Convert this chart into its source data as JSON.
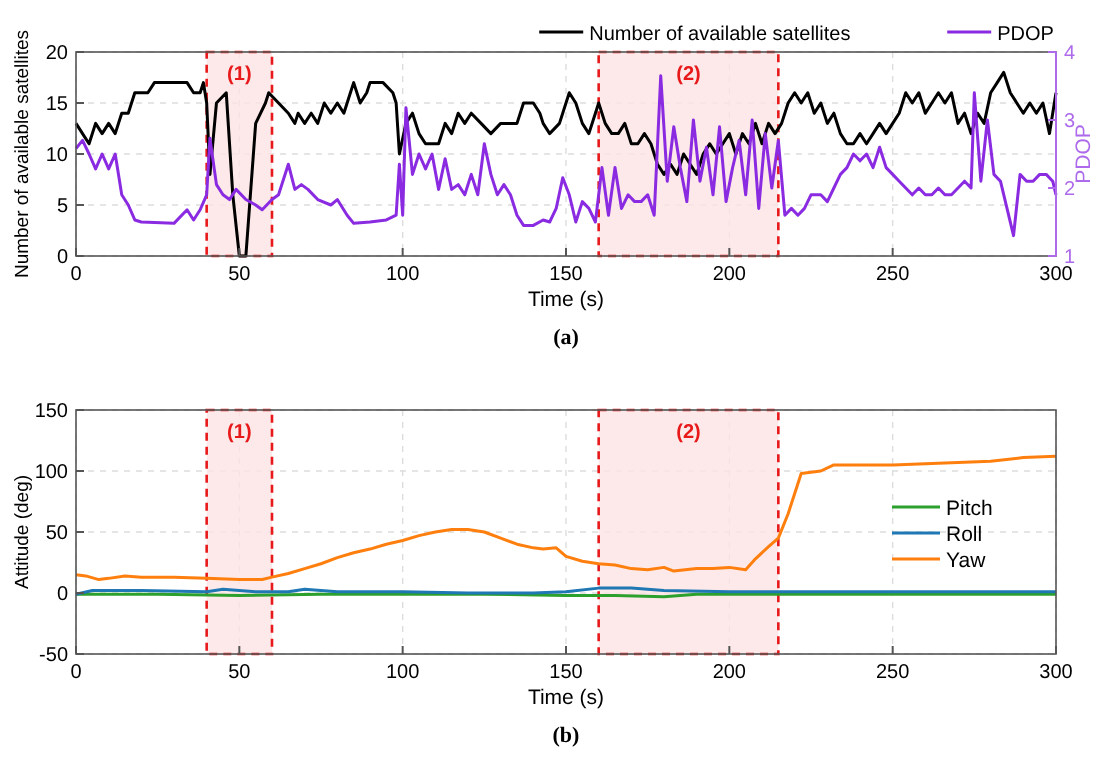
{
  "chart_data": [
    {
      "type": "line",
      "xlabel": "Time (s)",
      "ylabel": "Number of available satellites",
      "y2label": "PDOP",
      "xlim": [
        0,
        300
      ],
      "xticks": [
        0,
        50,
        100,
        150,
        200,
        250,
        300
      ],
      "ylim": [
        0,
        20
      ],
      "yticks": [
        0,
        5,
        10,
        15,
        20
      ],
      "y2lim": [
        1,
        4
      ],
      "y2ticks": [
        1,
        2,
        3,
        4
      ],
      "grid": true,
      "legend": "top right",
      "annotations": [
        "(a)"
      ],
      "bands": [
        {
          "axis": "x",
          "from": 40,
          "to": 60,
          "label": "(1)",
          "color": "#fde4e4"
        },
        {
          "axis": "x",
          "from": 160,
          "to": 215,
          "label": "(2)",
          "color": "#fde4e4"
        }
      ],
      "series": [
        {
          "name": "Number of available satellites",
          "color": "#000000",
          "x": [
            0,
            2,
            4,
            6,
            8,
            10,
            12,
            14,
            16,
            18,
            22,
            24,
            34,
            36,
            38,
            39,
            40,
            41,
            43,
            46,
            48,
            50,
            52,
            55,
            58,
            59,
            62,
            65,
            67,
            68,
            70,
            72,
            74,
            76,
            78,
            80,
            82,
            84,
            85,
            87,
            89,
            90,
            94,
            97,
            98,
            99,
            101,
            103,
            105,
            107,
            111,
            113,
            115,
            117,
            119,
            121,
            124,
            127,
            130,
            135,
            137,
            140,
            142,
            143,
            145,
            148,
            151,
            153,
            155,
            157,
            159,
            160,
            162,
            164,
            166,
            168,
            170,
            172,
            174,
            176,
            178,
            180,
            182,
            184,
            186,
            188,
            190,
            192,
            194,
            196,
            198,
            200,
            202,
            204,
            206,
            208,
            210,
            212,
            214,
            216,
            218,
            220,
            222,
            224,
            226,
            228,
            230,
            232,
            234,
            236,
            238,
            240,
            242,
            244,
            246,
            248,
            250,
            252,
            254,
            256,
            258,
            260,
            262,
            264,
            266,
            268,
            270,
            272,
            274,
            276,
            278,
            280,
            282,
            284,
            286,
            288,
            290,
            292,
            294,
            296,
            298,
            300
          ],
          "values": [
            13,
            12,
            11,
            13,
            12,
            13,
            12,
            14,
            14,
            16,
            16,
            17,
            17,
            16,
            16,
            17,
            15,
            8,
            15,
            16,
            6,
            0,
            0,
            13,
            15,
            16,
            15,
            14,
            13,
            14,
            13,
            14,
            13,
            15,
            14,
            15,
            14,
            16,
            17,
            15,
            16,
            17,
            17,
            16,
            15,
            10,
            13,
            14,
            12,
            11,
            11,
            13,
            12,
            14,
            13,
            14,
            13,
            12,
            13,
            13,
            15,
            15,
            14,
            13,
            12,
            13,
            16,
            15,
            13,
            12,
            14,
            15,
            13,
            12,
            12,
            13,
            11,
            11,
            12,
            11,
            9,
            8,
            9,
            8,
            10,
            9,
            8,
            10,
            11,
            10,
            11,
            12,
            10,
            12,
            11,
            13,
            11,
            13,
            12,
            13,
            15,
            16,
            15,
            16,
            14,
            15,
            13,
            14,
            12,
            11,
            11,
            12,
            11,
            12,
            13,
            12,
            13,
            14,
            16,
            15,
            16,
            14,
            15,
            16,
            15,
            16,
            13,
            14,
            12,
            14,
            13,
            16,
            17,
            18,
            16,
            15,
            14,
            15,
            14,
            15,
            12,
            16
          ]
        },
        {
          "name": "PDOP",
          "color": "#8a2be2",
          "axis": "y2",
          "x": [
            0,
            2,
            4,
            6,
            8,
            10,
            12,
            14,
            16,
            18,
            20,
            30,
            34,
            36,
            38,
            40,
            41,
            43,
            45,
            47,
            49,
            52,
            55,
            57,
            60,
            62,
            65,
            67,
            69,
            71,
            74,
            78,
            80,
            83,
            85,
            90,
            95,
            98,
            99,
            100,
            101,
            103,
            105,
            107,
            109,
            111,
            113,
            115,
            117,
            119,
            121,
            123,
            125,
            127,
            129,
            131,
            133,
            135,
            137,
            140,
            143,
            145,
            147,
            149,
            151,
            153,
            155,
            157,
            159,
            161,
            163,
            165,
            167,
            169,
            171,
            173,
            175,
            177,
            179,
            181,
            183,
            185,
            187,
            189,
            191,
            193,
            195,
            197,
            199,
            201,
            203,
            205,
            207,
            209,
            211,
            213,
            215,
            217,
            219,
            221,
            223,
            225,
            228,
            230,
            232,
            234,
            236,
            238,
            240,
            242,
            244,
            246,
            248,
            250,
            252,
            254,
            256,
            258,
            260,
            262,
            264,
            266,
            268,
            270,
            272,
            274,
            275,
            277,
            279,
            281,
            283,
            285,
            287,
            289,
            291,
            293,
            295,
            297,
            299,
            300
          ],
          "values": [
            2.58,
            2.7,
            2.5,
            2.28,
            2.5,
            2.28,
            2.5,
            1.9,
            1.75,
            1.53,
            1.5,
            1.48,
            1.68,
            1.53,
            1.68,
            1.9,
            2.73,
            2.05,
            1.9,
            1.83,
            1.98,
            1.83,
            1.75,
            1.68,
            1.83,
            1.9,
            2.35,
            1.98,
            2.05,
            1.98,
            1.83,
            1.75,
            1.83,
            1.6,
            1.48,
            1.5,
            1.53,
            1.6,
            2.35,
            1.6,
            3.18,
            2.2,
            2.5,
            2.28,
            2.5,
            1.98,
            2.43,
            1.98,
            2.05,
            1.9,
            2.2,
            1.9,
            2.65,
            2.2,
            1.9,
            2.05,
            1.9,
            1.6,
            1.45,
            1.45,
            1.53,
            1.5,
            1.7,
            2.15,
            1.9,
            1.5,
            1.8,
            1.7,
            1.5,
            2.3,
            1.6,
            2.3,
            1.7,
            1.9,
            1.8,
            1.8,
            1.9,
            1.6,
            3.65,
            2.1,
            2.9,
            2.3,
            1.8,
            3.0,
            2.1,
            2.6,
            1.9,
            2.9,
            1.8,
            2.3,
            2.7,
            1.9,
            3.0,
            1.7,
            2.8,
            2.0,
            2.7,
            1.6,
            1.7,
            1.6,
            1.7,
            1.9,
            1.9,
            1.8,
            2.0,
            2.2,
            2.3,
            2.5,
            2.4,
            2.5,
            2.3,
            2.6,
            2.3,
            2.2,
            2.1,
            2.0,
            1.9,
            2.0,
            1.9,
            1.9,
            2.0,
            1.9,
            1.9,
            2.0,
            2.1,
            2.0,
            3.4,
            2.1,
            3.0,
            2.2,
            2.1,
            1.7,
            1.3,
            2.2,
            2.1,
            2.1,
            2.2,
            2.2,
            2.1,
            1.9
          ]
        }
      ]
    },
    {
      "type": "line",
      "xlabel": "Time (s)",
      "ylabel": "Attitude (deg)",
      "xlim": [
        0,
        300
      ],
      "xticks": [
        0,
        50,
        100,
        150,
        200,
        250,
        300
      ],
      "ylim": [
        -50,
        150
      ],
      "yticks": [
        -50,
        0,
        50,
        100,
        150
      ],
      "grid": true,
      "legend": "right",
      "annotations": [
        "(b)"
      ],
      "bands": [
        {
          "axis": "x",
          "from": 40,
          "to": 60,
          "label": "(1)",
          "color": "#fde4e4"
        },
        {
          "axis": "x",
          "from": 160,
          "to": 215,
          "label": "(2)",
          "color": "#fde4e4"
        }
      ],
      "series": [
        {
          "name": "Pitch",
          "color": "#2ca02c",
          "x": [
            0,
            25,
            50,
            75,
            100,
            125,
            150,
            165,
            180,
            190,
            200,
            230,
            260,
            300
          ],
          "values": [
            -1,
            -1,
            -2,
            -1,
            -1,
            -1,
            -2,
            -2,
            -3,
            -1,
            -1,
            -1,
            -1,
            -1
          ]
        },
        {
          "name": "Roll",
          "color": "#1f77b4",
          "x": [
            0,
            5,
            20,
            40,
            45,
            55,
            65,
            70,
            80,
            100,
            120,
            140,
            150,
            160,
            170,
            180,
            200,
            220,
            260,
            300
          ],
          "values": [
            -1,
            2,
            2,
            1,
            3,
            1,
            1,
            3,
            1,
            1,
            0,
            0,
            1,
            4,
            4,
            2,
            1,
            1,
            1,
            1
          ]
        },
        {
          "name": "Yaw",
          "color": "#ff7f0e",
          "x": [
            0,
            3,
            7,
            10,
            15,
            20,
            30,
            40,
            50,
            57,
            60,
            65,
            70,
            75,
            80,
            85,
            90,
            95,
            100,
            105,
            110,
            115,
            120,
            125,
            130,
            135,
            140,
            143,
            147,
            150,
            155,
            160,
            165,
            170,
            175,
            180,
            183,
            190,
            195,
            200,
            205,
            208,
            212,
            215,
            218,
            222,
            228,
            232,
            240,
            250,
            260,
            270,
            280,
            290,
            300
          ],
          "values": [
            15,
            14,
            11,
            12,
            14,
            13,
            13,
            12,
            11,
            11,
            13,
            16,
            20,
            24,
            29,
            33,
            36,
            40,
            43,
            47,
            50,
            52,
            52,
            50,
            45,
            40,
            37,
            36,
            37,
            30,
            26,
            24,
            23,
            20,
            19,
            21,
            18,
            20,
            20,
            21,
            19,
            28,
            38,
            45,
            65,
            98,
            100,
            105,
            105,
            105,
            106,
            107,
            108,
            111,
            112
          ]
        }
      ]
    }
  ]
}
